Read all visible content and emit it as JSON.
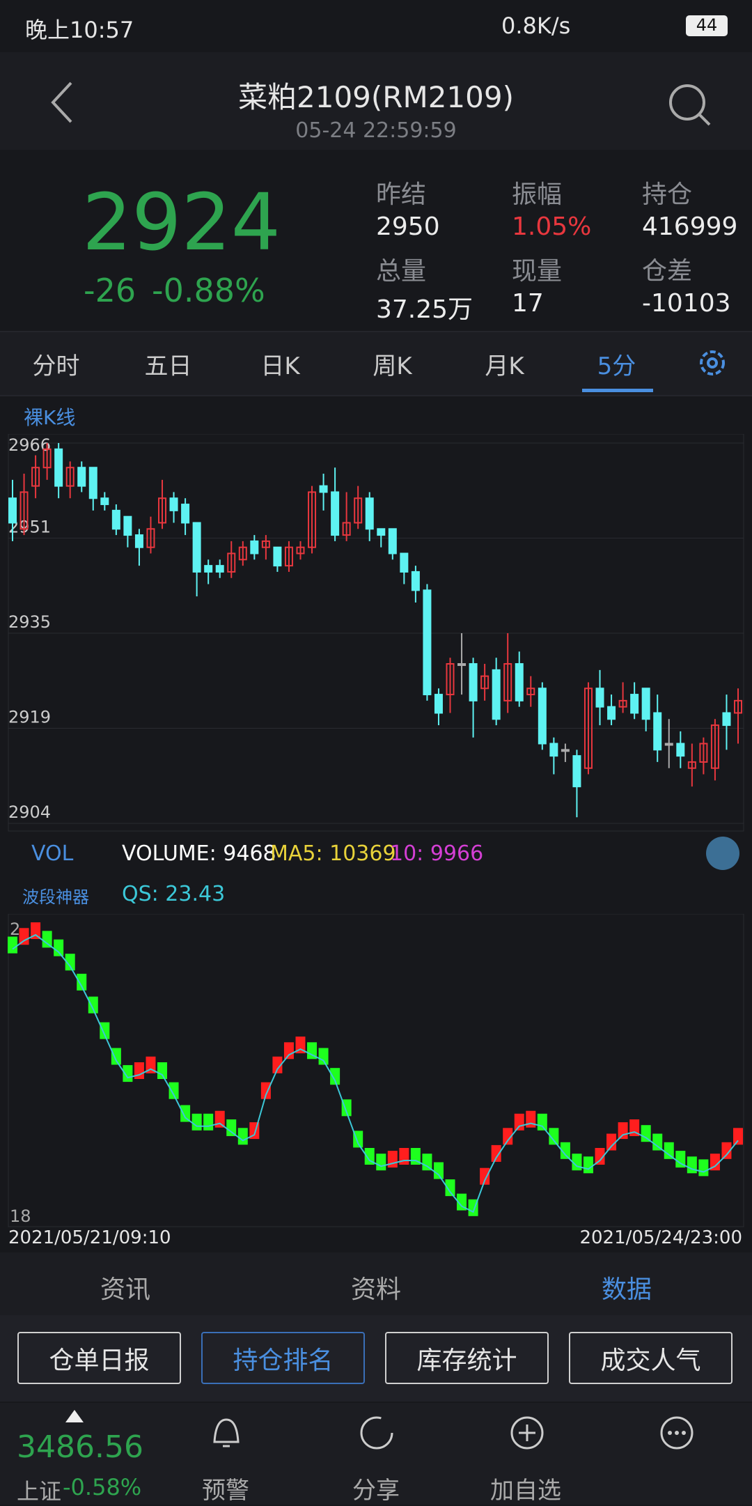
{
  "status": {
    "time": "晚上10:57",
    "speed": "0.8K/s",
    "battery": "44"
  },
  "header": {
    "title": "菜粕2109(RM2109)",
    "datetime": "05-24 22:59:59"
  },
  "quote": {
    "price": "2924",
    "change": "-26",
    "percent": "-0.88%",
    "stats": [
      {
        "label": "昨结",
        "value": "2950"
      },
      {
        "label": "振幅",
        "value": "1.05%"
      },
      {
        "label": "持仓",
        "value": "416999"
      },
      {
        "label": "总量",
        "value": "37.25万"
      },
      {
        "label": "现量",
        "value": "17"
      },
      {
        "label": "仓差",
        "value": "-10103"
      }
    ]
  },
  "tabs": [
    "分时",
    "五日",
    "日K",
    "周K",
    "月K",
    "5分"
  ],
  "kline_label": "裸K线",
  "vol": {
    "name": "VOL",
    "volume": "VOLUME: 9468",
    "ma5": "MA5: 10369",
    "ma10": "10: 9966"
  },
  "qs": {
    "name": "波段神器",
    "value": "QS: 23.43",
    "top_label": "2",
    "bottom_label": "18"
  },
  "xlabels": [
    "2021/05/21/09:10",
    "2021/05/24/23:00"
  ],
  "info_tabs": [
    "资讯",
    "资料",
    "数据"
  ],
  "buttons": [
    "仓单日报",
    "持仓排名",
    "库存统计",
    "成交人气"
  ],
  "index": {
    "value": "3486.56",
    "name": "上证",
    "percent": "-0.58%"
  },
  "nav": [
    "预警",
    "分享",
    "加自选"
  ],
  "chart_data": [
    {
      "type": "candlestick",
      "up_color": "#e8373e",
      "down_color": "#5ef2f2",
      "flat_color": "#aaaaaa",
      "ylim": [
        2904,
        2966
      ],
      "yticks": [
        2966,
        {
          "value": 2950.5,
          "label": "2951"
        },
        2935,
        {
          "value": 2919.5,
          "label": "2919"
        },
        2904
      ],
      "grid": true,
      "open": [
        2957,
        2952,
        2959,
        2962,
        2965,
        2959,
        2962,
        2962,
        2957,
        2955,
        2954,
        2951,
        2949,
        2953,
        2957,
        2956,
        2953,
        2946,
        2946,
        2945,
        2947,
        2950,
        2949,
        2949,
        2946,
        2948,
        2949,
        2959,
        2958,
        2951,
        2953,
        2957,
        2952,
        2952,
        2948,
        2945,
        2942,
        2925,
        2925,
        2930,
        2930,
        2926,
        2929,
        2924,
        2930,
        2925,
        2926,
        2917,
        2916,
        2915,
        2913,
        2926,
        2923,
        2923,
        2925,
        2926,
        2922,
        2917,
        2917,
        2913,
        2914,
        2913,
        2922,
        2922
      ],
      "close": [
        2953,
        2958,
        2962,
        2965,
        2959,
        2962,
        2959,
        2957,
        2956,
        2952,
        2951,
        2949,
        2952,
        2957,
        2955,
        2953,
        2945,
        2945,
        2945,
        2948,
        2949,
        2948,
        2950,
        2946,
        2949,
        2949,
        2958,
        2958,
        2951,
        2953,
        2957,
        2952,
        2951,
        2948,
        2945,
        2942,
        2925,
        2922,
        2930,
        2930,
        2924,
        2928,
        2921,
        2930,
        2924,
        2926,
        2917,
        2915,
        2916,
        2910,
        2926,
        2923,
        2921,
        2924,
        2922,
        2921,
        2916,
        2917,
        2915,
        2914,
        2917,
        2920,
        2920,
        2924
      ],
      "high": [
        2960,
        2961,
        2964,
        2966,
        2966,
        2963,
        2963,
        2962,
        2958,
        2956,
        2954,
        2952,
        2954,
        2960,
        2958,
        2957,
        2953,
        2947,
        2947,
        2950,
        2950,
        2951,
        2951,
        2949,
        2950,
        2950,
        2959,
        2961,
        2962,
        2958,
        2959,
        2958,
        2952,
        2952,
        2948,
        2946,
        2943,
        2926,
        2931,
        2935,
        2931,
        2930,
        2931,
        2935,
        2932,
        2928,
        2927,
        2918,
        2917,
        2916,
        2927,
        2929,
        2925,
        2927,
        2927,
        2926,
        2925,
        2921,
        2919,
        2917,
        2918,
        2921,
        2925,
        2926
      ],
      "low": [
        2950,
        2951,
        2957,
        2960,
        2957,
        2957,
        2958,
        2955,
        2955,
        2951,
        2949,
        2946,
        2948,
        2952,
        2953,
        2951,
        2941,
        2943,
        2944,
        2944,
        2946,
        2947,
        2947,
        2945,
        2945,
        2947,
        2948,
        2955,
        2950,
        2950,
        2952,
        2950,
        2949,
        2947,
        2943,
        2940,
        2924,
        2920,
        2922,
        2925,
        2918,
        2924,
        2920,
        2922,
        2923,
        2923,
        2916,
        2912,
        2914,
        2905,
        2912,
        2920,
        2920,
        2922,
        2921,
        2919,
        2914,
        2913,
        2913,
        2910,
        2912,
        2911,
        2916,
        2917
      ]
    },
    {
      "type": "line",
      "up_color": "#ff1e1e",
      "down_color": "#1eff1e",
      "line_color": "#3cc8d8",
      "ylim": [
        0,
        100
      ],
      "values": [
        94,
        97,
        99,
        96,
        93,
        88,
        81,
        73,
        64,
        55,
        49,
        50,
        52,
        50,
        43,
        35,
        32,
        32,
        33,
        30,
        27,
        29,
        43,
        52,
        57,
        59,
        57,
        55,
        48,
        37,
        26,
        20,
        18,
        19,
        20,
        20,
        18,
        15,
        9,
        4,
        2,
        13,
        21,
        27,
        32,
        33,
        32,
        27,
        22,
        18,
        17,
        20,
        25,
        29,
        30,
        28,
        25,
        22,
        19,
        17,
        16,
        18,
        22,
        27
      ]
    }
  ]
}
